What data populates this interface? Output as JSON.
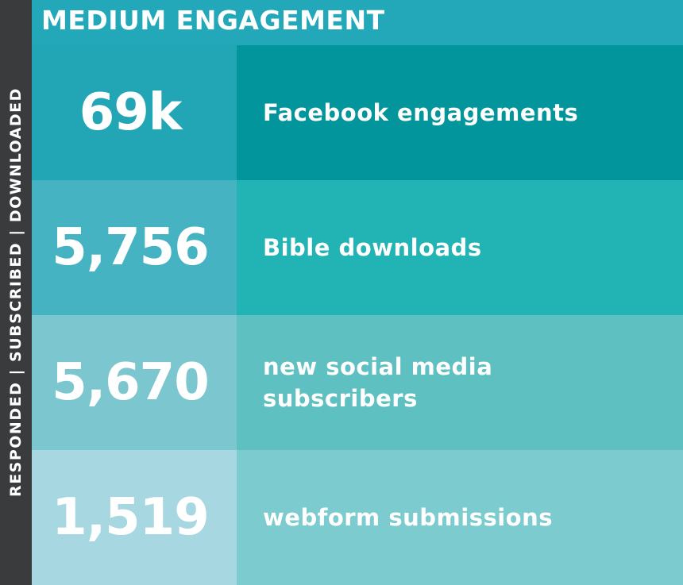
{
  "side_label": "RESPONDED | SUBSCRIBED | DOWNLOADED",
  "header": {
    "title": "MEDIUM ENGAGEMENT"
  },
  "rows": [
    {
      "value": "69k",
      "label": "Facebook engagements",
      "num_color": "#22a6b6",
      "label_color": "#02969c"
    },
    {
      "value": "5,756",
      "label": "Bible downloads",
      "num_color": "#45b3c2",
      "label_color": "#22b3b4"
    },
    {
      "value": "5,670",
      "label": "new social media subscribers",
      "num_color": "#7cc6d0",
      "label_color": "#5fc0c2"
    },
    {
      "value": "1,519",
      "label": "webform submissions",
      "num_color": "#a7d8e1",
      "label_color": "#7ccbcf"
    }
  ],
  "colors": {
    "side_bar": "#3a3b3c",
    "header": "#22a8b8",
    "text": "#ffffff"
  }
}
